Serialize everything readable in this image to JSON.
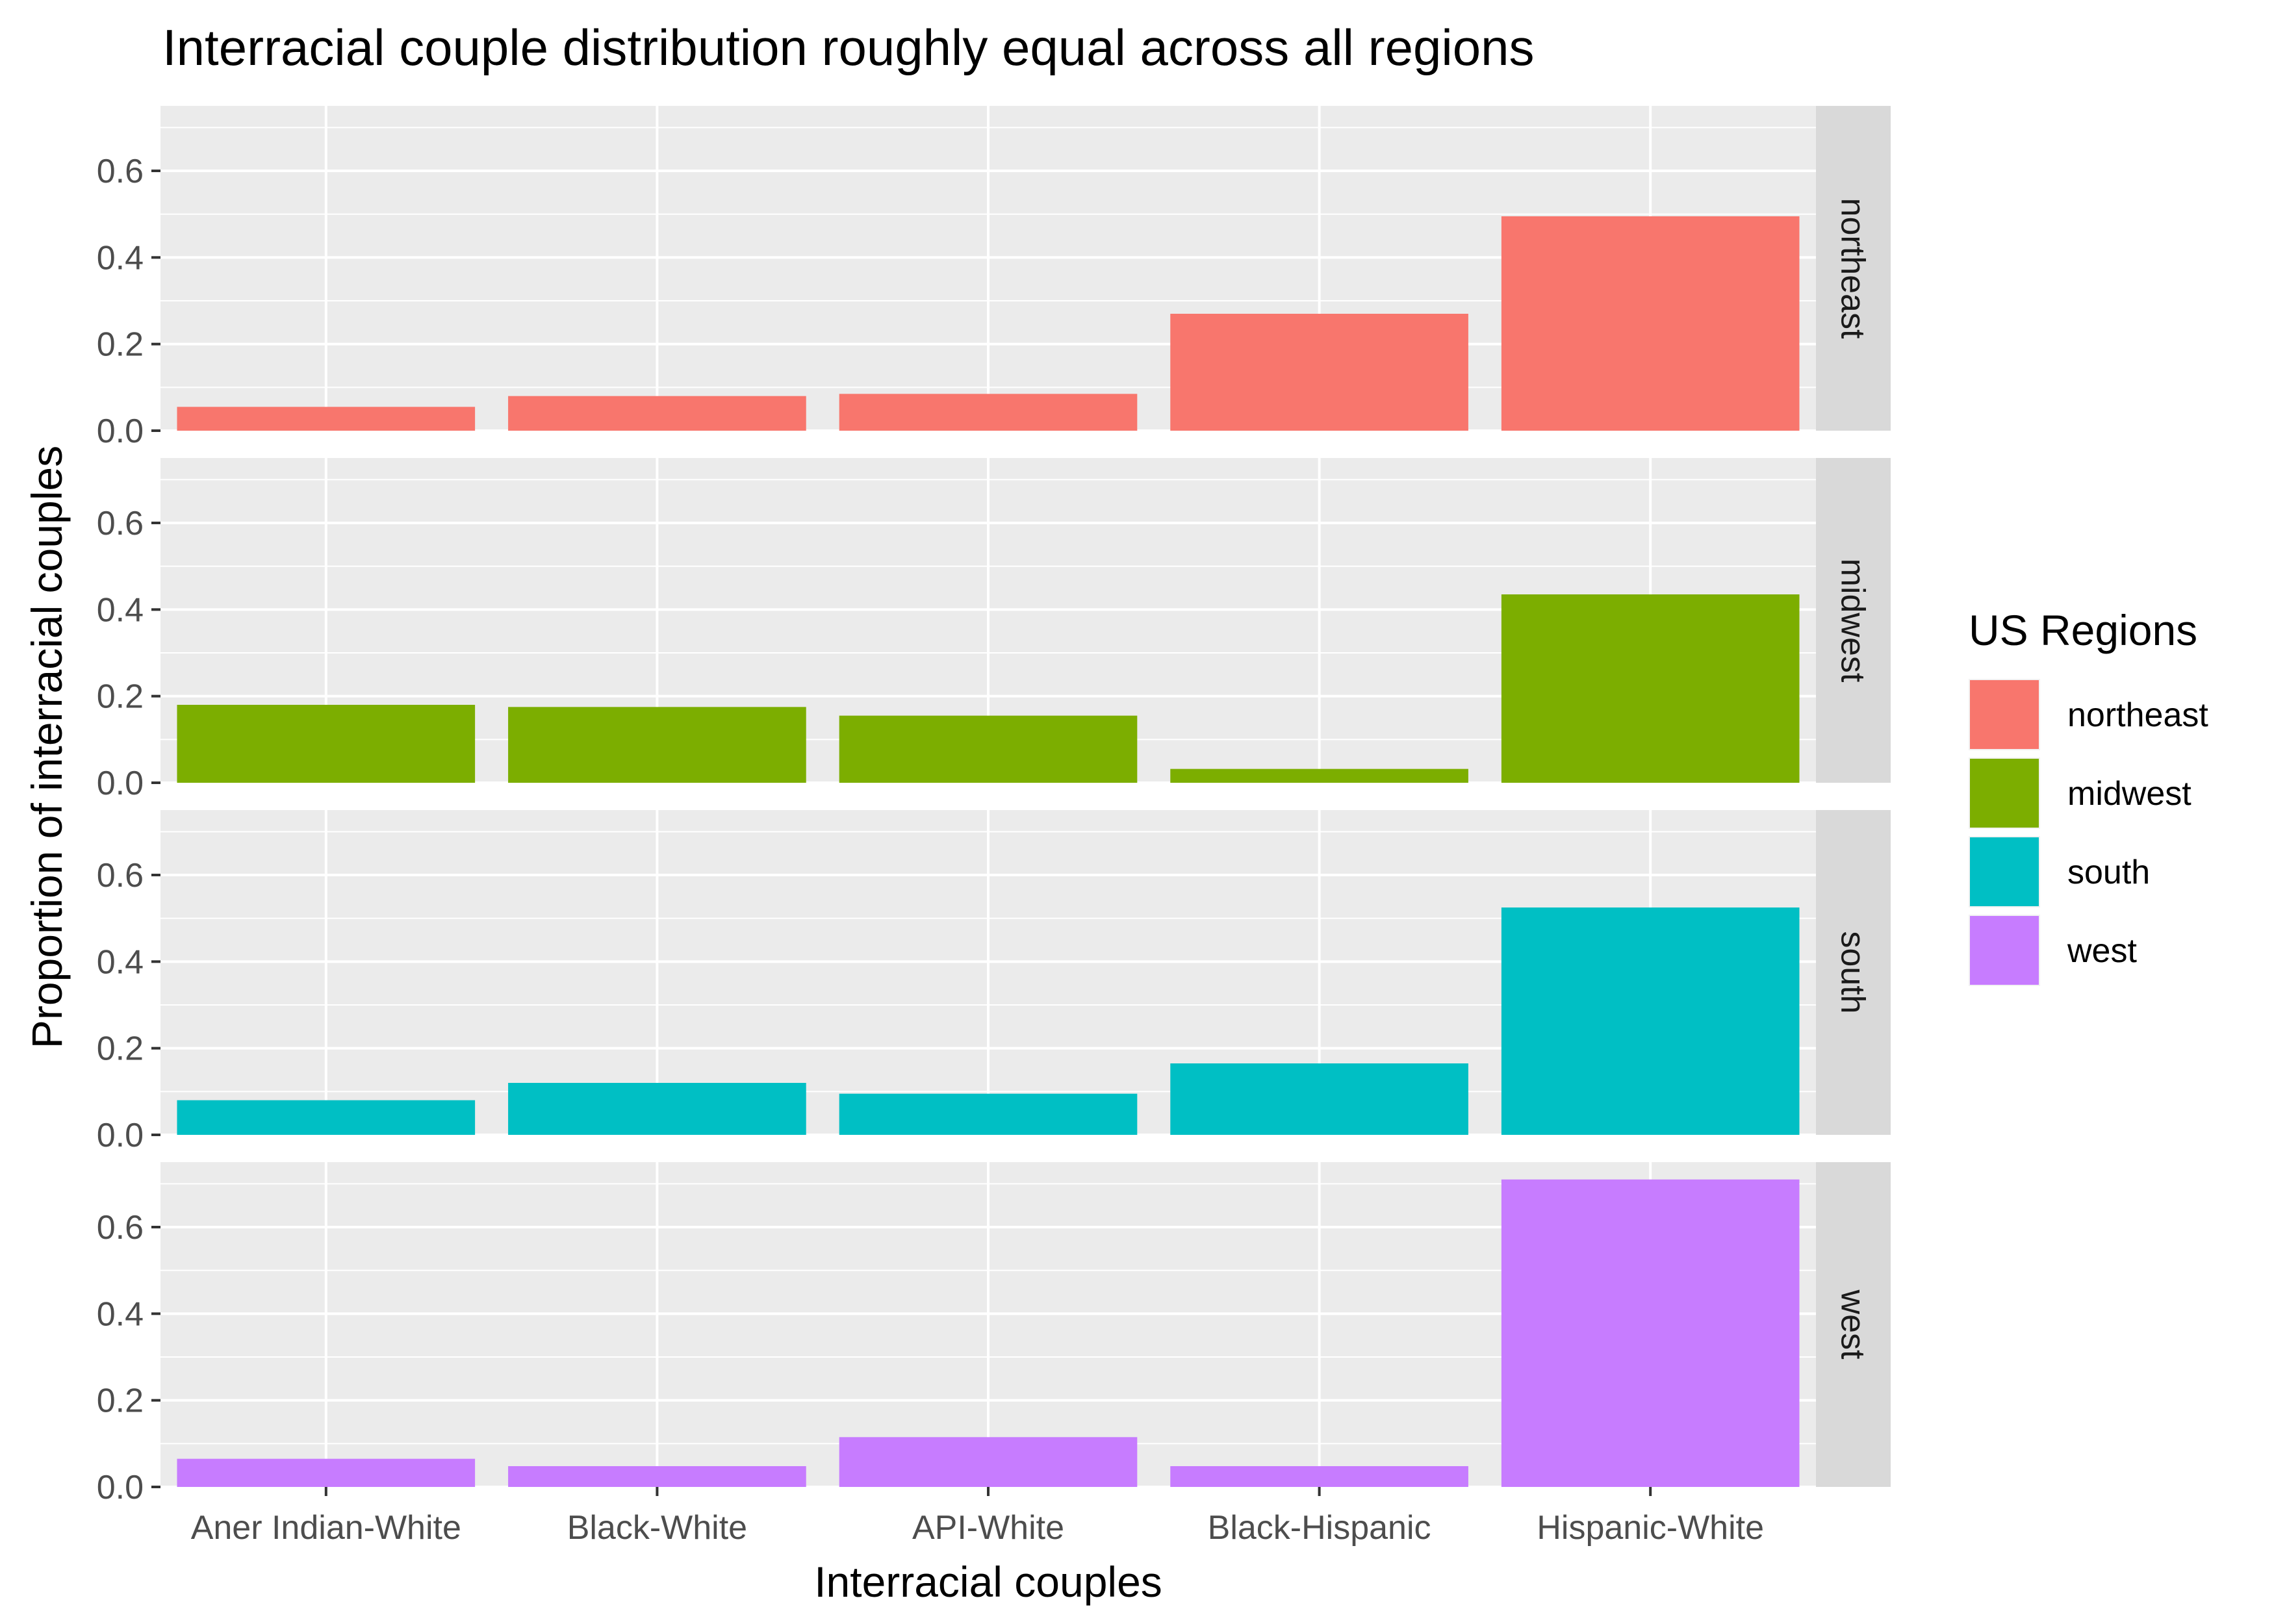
{
  "chart_data": {
    "type": "bar",
    "title": "Interracial couple distribution roughly equal across all regions",
    "xlabel": "Interracial couples",
    "ylabel": "Proportion of interracial couples",
    "categories": [
      "Aner Indian-White",
      "Black-White",
      "API-White",
      "Black-Hispanic",
      "Hispanic-White"
    ],
    "ylim": [
      0,
      0.75
    ],
    "yticks": [
      0.0,
      0.2,
      0.4,
      0.6
    ],
    "ytick_labels": [
      "0.0",
      "0.2",
      "0.4",
      "0.6"
    ],
    "grid": true,
    "legend": {
      "title": "US Regions",
      "placement": "right"
    },
    "series": [
      {
        "name": "northeast",
        "color": "#F8766D",
        "values": [
          0.055,
          0.08,
          0.085,
          0.27,
          0.495
        ]
      },
      {
        "name": "midwest",
        "color": "#7CAE00",
        "values": [
          0.18,
          0.175,
          0.155,
          0.032,
          0.435
        ]
      },
      {
        "name": "south",
        "color": "#00BFC4",
        "values": [
          0.08,
          0.12,
          0.095,
          0.165,
          0.525
        ]
      },
      {
        "name": "west",
        "color": "#C77CFF",
        "values": [
          0.065,
          0.048,
          0.115,
          0.048,
          0.71
        ]
      }
    ]
  }
}
